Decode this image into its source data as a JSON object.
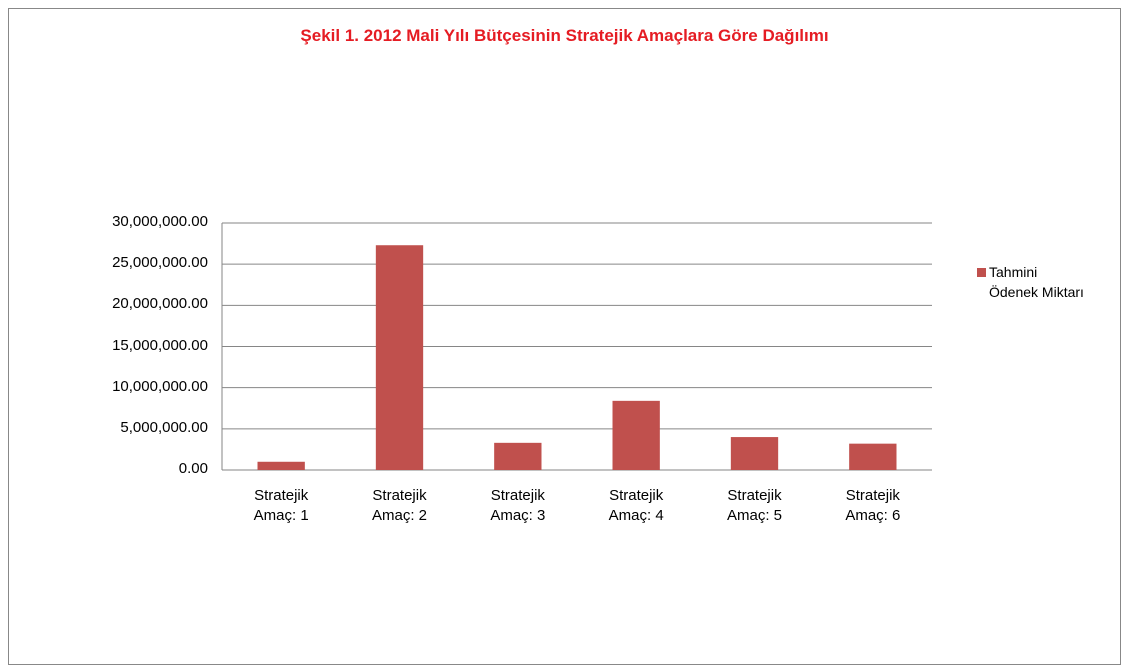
{
  "chart_data": {
    "type": "bar",
    "title": "Şekil 1. 2012 Mali  Yılı Bütçesinin Stratejik Amaçlara Göre Dağılımı",
    "categories": [
      "Stratejik Amaç: 1",
      "Stratejik Amaç: 2",
      "Stratejik Amaç: 3",
      "Stratejik Amaç: 4",
      "Stratejik Amaç: 5",
      "Stratejik Amaç: 6"
    ],
    "series": [
      {
        "name": "Tahmini Ödenek Miktarı",
        "color": "#c0504d",
        "values": [
          1000000,
          27300000,
          3300000,
          8400000,
          4000000,
          3200000
        ]
      }
    ],
    "ylim": [
      0,
      30000000
    ],
    "yticks": [
      {
        "value": 0,
        "label": "0.00"
      },
      {
        "value": 5000000,
        "label": "5,000,000.00"
      },
      {
        "value": 10000000,
        "label": "10,000,000.00"
      },
      {
        "value": 15000000,
        "label": "15,000,000.00"
      },
      {
        "value": 20000000,
        "label": "20,000,000.00"
      },
      {
        "value": 25000000,
        "label": "25,000,000.00"
      },
      {
        "value": 30000000,
        "label": "30,000,000.00"
      }
    ],
    "grid": true,
    "legend": "right"
  }
}
